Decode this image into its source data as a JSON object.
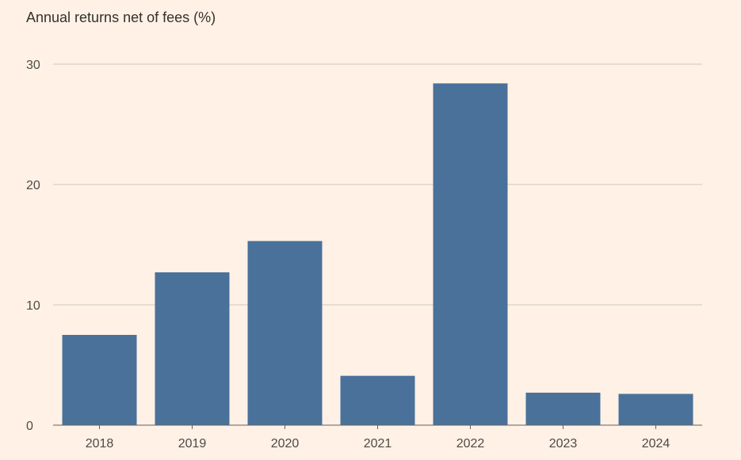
{
  "chart_data": {
    "type": "bar",
    "title": "Annual returns net of fees (%)",
    "categories": [
      "2018",
      "2019",
      "2020",
      "2021",
      "2022",
      "2023",
      "2024"
    ],
    "values": [
      7.5,
      12.7,
      15.3,
      4.1,
      28.4,
      2.7,
      2.6
    ],
    "ylim": [
      0,
      30
    ],
    "yticks": [
      0,
      10,
      20,
      30
    ],
    "ytick_labels": [
      "0",
      "10",
      "20",
      "30"
    ],
    "grid": true,
    "bar_color": "#4A719A",
    "background_color": "#FFF1E5"
  }
}
